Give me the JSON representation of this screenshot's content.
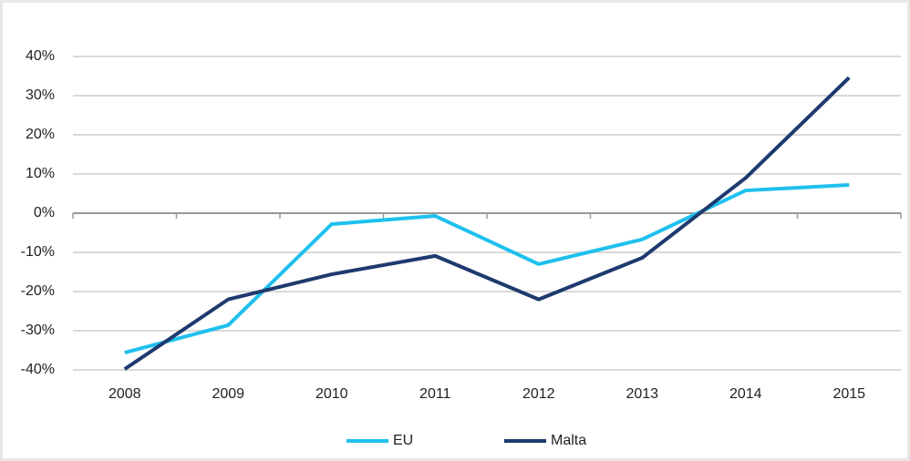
{
  "chart_data": {
    "type": "line",
    "categories": [
      "2008",
      "2009",
      "2010",
      "2011",
      "2012",
      "2013",
      "2014",
      "2015"
    ],
    "series": [
      {
        "name": "EU",
        "color": "#1fc0ee",
        "values": [
          -35.6,
          -28.6,
          -2.8,
          -0.7,
          -13,
          -6.7,
          5.8,
          7.2
        ]
      },
      {
        "name": "Malta",
        "color": "#1e3a6e",
        "values": [
          -39.8,
          -22,
          -15.6,
          -10.9,
          -22,
          -11.4,
          9,
          34.6
        ]
      }
    ],
    "ylim": [
      -40,
      40
    ],
    "yticks": [
      {
        "value": -40,
        "label": "-40%"
      },
      {
        "value": -30,
        "label": "-30%"
      },
      {
        "value": -20,
        "label": "-20%"
      },
      {
        "value": -10,
        "label": "-10%"
      },
      {
        "value": 0,
        "label": "0%"
      },
      {
        "value": 10,
        "label": "10%"
      },
      {
        "value": 20,
        "label": "20%"
      },
      {
        "value": 30,
        "label": "30%"
      },
      {
        "value": 40,
        "label": "40%"
      }
    ],
    "grid": true,
    "legend": "bottom"
  }
}
